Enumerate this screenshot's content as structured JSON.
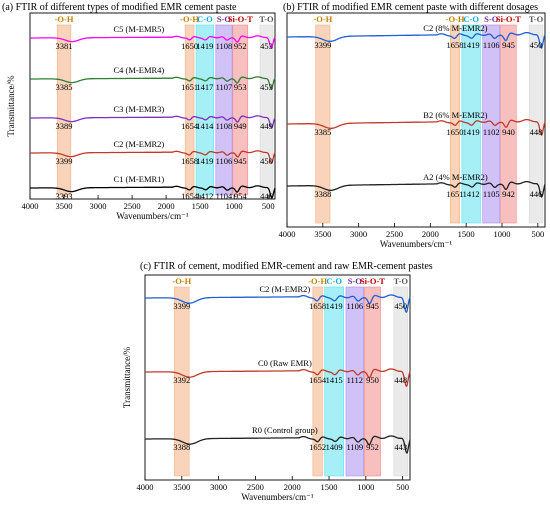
{
  "chart_data": [
    {
      "type": "line",
      "title": "(a) FTIR of  different types of modified EMR cement paste",
      "xlabel": "Wavenumbers/cm⁻¹",
      "ylabel": "Transmittance/%",
      "xlim": [
        4000,
        400
      ],
      "x_reversed": true,
      "xticks": [
        4000,
        3500,
        3000,
        2500,
        2000,
        1500,
        1000,
        500
      ],
      "bands": [
        {
          "label": "-O-H",
          "from": 3600,
          "to": 3400,
          "color": "#f4b183",
          "label_color": "#c28000"
        },
        {
          "label": "-O-H",
          "from": 1720,
          "to": 1590,
          "color": "#f4b183",
          "label_color": "#c28000"
        },
        {
          "label": "C-O",
          "from": 1560,
          "to": 1300,
          "color": "#5ce1f0",
          "label_color": "#00aeef"
        },
        {
          "label": "S-O",
          "from": 1270,
          "to": 1030,
          "color": "#a98ef0",
          "label_color": "#7030a0"
        },
        {
          "label": "Si-O-T",
          "from": 1020,
          "to": 800,
          "color": "#f28b8b",
          "label_color": "#c00000"
        },
        {
          "label": "T-O",
          "from": 620,
          "to": 430,
          "color": "#d9d9d9",
          "label_color": "#595959"
        }
      ],
      "series": [
        {
          "name": "C5 (M-EMR5)",
          "color": "#ff00ff",
          "peaks": [
            3381,
            1650,
            1419,
            1108,
            952,
            453
          ]
        },
        {
          "name": "C4 (M-EMR4)",
          "color": "#2e7d32",
          "peaks": [
            3385,
            1651,
            1417,
            1107,
            953,
            453
          ]
        },
        {
          "name": "C3 (M-EMR3)",
          "color": "#7b2fbf",
          "peaks": [
            3389,
            1654,
            1414,
            1108,
            949,
            449
          ]
        },
        {
          "name": "C2 (M-EMR2)",
          "color": "#c0392b",
          "peaks": [
            3399,
            1658,
            1419,
            1106,
            945,
            450
          ]
        },
        {
          "name": "C1 (M-EMR1)",
          "color": "#000000",
          "peaks": [
            3393,
            1654,
            1412,
            1104,
            954,
            446
          ]
        }
      ]
    },
    {
      "type": "line",
      "title": "(b) FTIR of modified EMR cement paste with different dosages",
      "xlabel": "Wavenumbers/cm⁻¹",
      "ylabel": "",
      "xlim": [
        4000,
        400
      ],
      "x_reversed": true,
      "xticks": [
        4000,
        3500,
        3000,
        2500,
        2000,
        1500,
        1000,
        500
      ],
      "bands": [
        {
          "label": "-O-H",
          "from": 3600,
          "to": 3400,
          "color": "#f4b183",
          "label_color": "#c28000"
        },
        {
          "label": "-O-H",
          "from": 1720,
          "to": 1590,
          "color": "#f4b183",
          "label_color": "#c28000"
        },
        {
          "label": "C-O",
          "from": 1560,
          "to": 1300,
          "color": "#5ce1f0",
          "label_color": "#00aeef"
        },
        {
          "label": "S-O",
          "from": 1270,
          "to": 1030,
          "color": "#a98ef0",
          "label_color": "#7030a0"
        },
        {
          "label": "Si-O-T",
          "from": 1020,
          "to": 800,
          "color": "#f28b8b",
          "label_color": "#c00000"
        },
        {
          "label": "T-O",
          "from": 620,
          "to": 430,
          "color": "#d9d9d9",
          "label_color": "#595959"
        }
      ],
      "series": [
        {
          "name": "C2 (8% M-EMR2)",
          "color": "#1f5fd6",
          "peaks": [
            3399,
            1658,
            1419,
            1106,
            945,
            450
          ]
        },
        {
          "name": "B2 (6% M-EMR2)",
          "color": "#c0392b",
          "peaks": [
            3385,
            1650,
            1419,
            1102,
            940,
            448
          ]
        },
        {
          "name": "A2 (4% M-EMR2)",
          "color": "#222222",
          "peaks": [
            3388,
            1651,
            1412,
            1105,
            942,
            446
          ]
        }
      ]
    },
    {
      "type": "line",
      "title": "(c) FTIR of cement, modified EMR-cement and raw EMR-cement pastes",
      "xlabel": "Wavenumbers/cm⁻¹",
      "ylabel": "Transmittance/%",
      "xlim": [
        4000,
        400
      ],
      "x_reversed": true,
      "xticks": [
        4000,
        3500,
        3000,
        2500,
        2000,
        1500,
        1000,
        500
      ],
      "bands": [
        {
          "label": "-O-H",
          "from": 3600,
          "to": 3400,
          "color": "#f4b183",
          "label_color": "#c28000"
        },
        {
          "label": "-O-H",
          "from": 1720,
          "to": 1590,
          "color": "#f4b183",
          "label_color": "#c28000"
        },
        {
          "label": "C-O",
          "from": 1560,
          "to": 1300,
          "color": "#5ce1f0",
          "label_color": "#00aeef"
        },
        {
          "label": "S-O",
          "from": 1270,
          "to": 1030,
          "color": "#a98ef0",
          "label_color": "#7030a0"
        },
        {
          "label": "Si-O-T",
          "from": 1020,
          "to": 800,
          "color": "#f28b8b",
          "label_color": "#c00000"
        },
        {
          "label": "T-O",
          "from": 620,
          "to": 430,
          "color": "#d9d9d9",
          "label_color": "#595959"
        }
      ],
      "series": [
        {
          "name": "C2 (M-EMR2)",
          "color": "#1f5fd6",
          "peaks": [
            3399,
            1658,
            1419,
            1106,
            945,
            450
          ]
        },
        {
          "name": "C0 (Raw EMR)",
          "color": "#c0392b",
          "peaks": [
            3392,
            1654,
            1415,
            1112,
            950,
            448
          ]
        },
        {
          "name": "R0 (Control group)",
          "color": "#222222",
          "peaks": [
            3388,
            1652,
            1409,
            1109,
            952,
            443
          ]
        }
      ]
    }
  ]
}
